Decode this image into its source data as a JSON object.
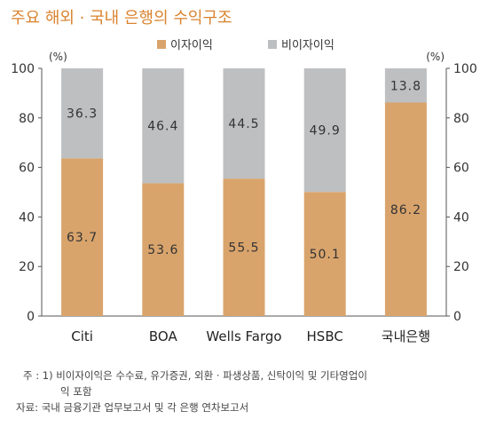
{
  "title": "주요 해외 · 국내 은행의 수익구조",
  "chart_data": {
    "type": "bar",
    "stacked": true,
    "categories": [
      "Citi",
      "BOA",
      "Wells Fargo",
      "HSBC",
      "국내은행"
    ],
    "series": [
      {
        "name": "이자이익",
        "color": "#d9a46c",
        "values": [
          63.7,
          53.6,
          55.5,
          50.1,
          86.2
        ]
      },
      {
        "name": "비이자이익",
        "color": "#bebfc1",
        "values": [
          36.3,
          46.4,
          44.5,
          49.9,
          13.8
        ]
      }
    ],
    "ylim": [
      0,
      100
    ],
    "yticks": [
      0,
      20,
      40,
      60,
      80,
      100
    ],
    "yunit_left": "(%)",
    "yunit_right": "(%)",
    "legend_position": "top-center",
    "grid": false
  },
  "notes": {
    "note1": "주 : 1) 비이자이익은 수수료, 유가증권, 외환 · 파생상품, 신탁이익 및 기타영업이",
    "note1_cont": "익 포함",
    "source": "자료: 국내 금융기관 업무보고서 및 각 은행 연차보고서"
  }
}
